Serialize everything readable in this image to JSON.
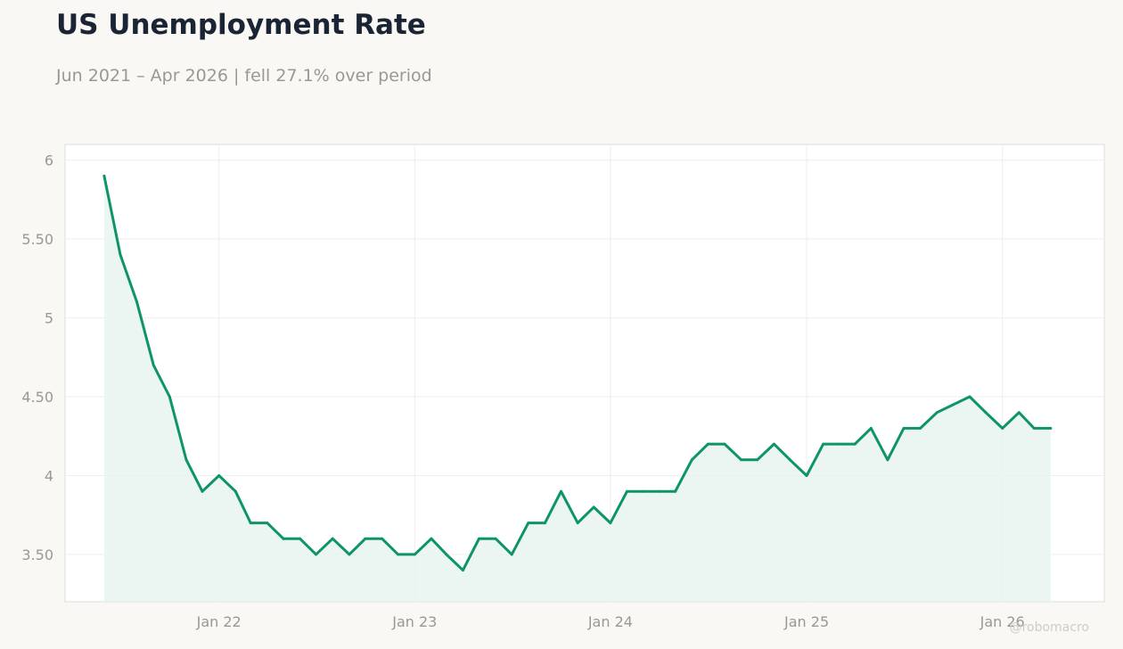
{
  "title": "US Unemployment Rate",
  "subtitle": "Jun 2021 – Apr 2026 | fell 27.1% over period",
  "watermark": "@robomacro",
  "colors": {
    "line": "#0e946a",
    "fill": "#e7f3ef",
    "background": "#f9f8f5",
    "plot_bg": "#ffffff",
    "grid": "#eeeeec",
    "text": "#9a9893",
    "title": "#1b2434"
  },
  "chart_data": {
    "type": "area",
    "title": "US Unemployment Rate",
    "subtitle": "Jun 2021 – Apr 2026 | fell 27.1% over period",
    "xlabel": "",
    "ylabel": "",
    "x_range": [
      "2021-03-20",
      "2026-07-10"
    ],
    "ylim": [
      3.2,
      6.1
    ],
    "grid": true,
    "y_ticks": [
      {
        "value": 3.5,
        "label": "3.50"
      },
      {
        "value": 4,
        "label": "4"
      },
      {
        "value": 4.5,
        "label": "4.50"
      },
      {
        "value": 5,
        "label": "5"
      },
      {
        "value": 5.5,
        "label": "5.50"
      },
      {
        "value": 6,
        "label": "6"
      }
    ],
    "x_ticks": [
      {
        "date": "2022-01-01",
        "label": "Jan 22"
      },
      {
        "date": "2023-01-01",
        "label": "Jan 23"
      },
      {
        "date": "2024-01-01",
        "label": "Jan 24"
      },
      {
        "date": "2025-01-01",
        "label": "Jan 25"
      },
      {
        "date": "2026-01-01",
        "label": "Jan 26"
      }
    ],
    "series": [
      {
        "x": [
          "2021-06-01",
          "2021-07-01",
          "2021-08-01",
          "2021-09-01",
          "2021-10-01",
          "2021-11-01",
          "2021-12-01",
          "2022-01-01",
          "2022-02-01",
          "2022-03-01",
          "2022-04-01",
          "2022-05-01",
          "2022-06-01",
          "2022-07-01",
          "2022-08-01",
          "2022-09-01",
          "2022-10-01",
          "2022-11-01",
          "2022-12-01",
          "2023-01-01",
          "2023-02-01",
          "2023-03-01",
          "2023-04-01",
          "2023-05-01",
          "2023-06-01",
          "2023-07-01",
          "2023-08-01",
          "2023-09-01",
          "2023-10-01",
          "2023-11-01",
          "2023-12-01",
          "2024-01-01",
          "2024-02-01",
          "2024-03-01",
          "2024-04-01",
          "2024-05-01",
          "2024-06-01",
          "2024-07-01",
          "2024-08-01",
          "2024-09-01",
          "2024-10-01",
          "2024-11-01",
          "2024-12-01",
          "2025-01-01",
          "2025-02-01",
          "2025-03-01",
          "2025-04-01",
          "2025-05-01",
          "2025-06-01",
          "2025-07-01",
          "2025-08-01",
          "2025-09-01",
          "2025-11-01",
          "2025-12-01",
          "2026-01-01",
          "2026-02-01",
          "2026-03-01",
          "2026-04-01"
        ],
        "values": [
          5.9,
          5.4,
          5.1,
          4.7,
          4.5,
          4.1,
          3.9,
          4.0,
          3.9,
          3.7,
          3.7,
          3.6,
          3.6,
          3.5,
          3.6,
          3.5,
          3.6,
          3.6,
          3.5,
          3.5,
          3.6,
          3.5,
          3.4,
          3.6,
          3.6,
          3.5,
          3.7,
          3.7,
          3.9,
          3.7,
          3.8,
          3.7,
          3.9,
          3.9,
          3.9,
          3.9,
          4.1,
          4.2,
          4.2,
          4.1,
          4.1,
          4.2,
          4.1,
          4.0,
          4.2,
          4.2,
          4.2,
          4.3,
          4.1,
          4.3,
          4.3,
          4.4,
          4.5,
          4.4,
          4.3,
          4.4,
          4.3,
          4.3
        ]
      }
    ]
  }
}
